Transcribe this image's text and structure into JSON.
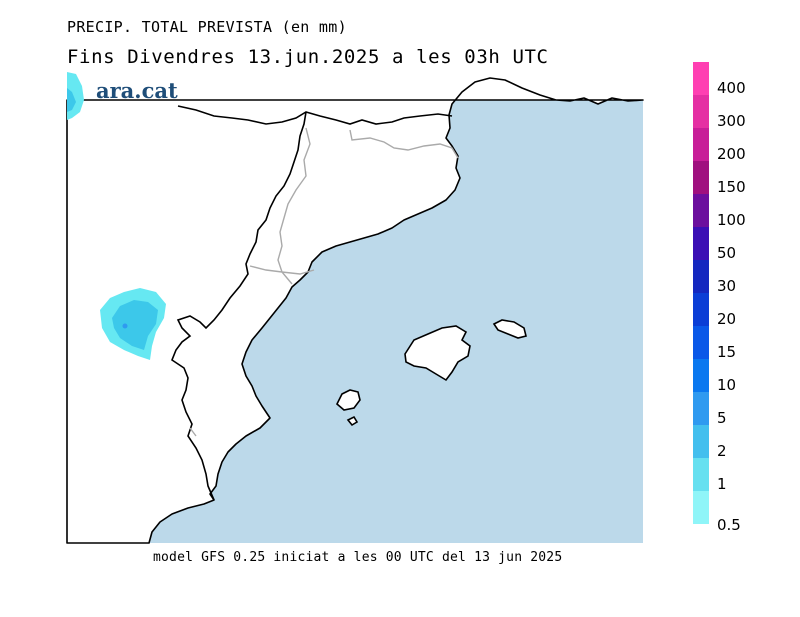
{
  "header": {
    "title_line1": "PRECIP. TOTAL PREVISTA (en mm)",
    "title_line2": "Fins Divendres 13.jun.2025 a les 03h UTC"
  },
  "brand": {
    "logo_text": "ara.cat"
  },
  "footer": {
    "model_text": "model GFS 0.25 iniciat a les 00 UTC del 13 jun 2025"
  },
  "map": {
    "sea_color": "#bcd9ea",
    "land_color": "#ffffff",
    "coast_color": "#000000",
    "border_color": "#aaaaaa",
    "precip_areas": [
      {
        "level": "1-2 mm",
        "color": "#66e8f2"
      },
      {
        "level": "2-5 mm",
        "color": "#3cc8ea"
      }
    ]
  },
  "legend": {
    "unit": "mm",
    "levels": [
      {
        "label": "400",
        "color": "#ff3fb2"
      },
      {
        "label": "300",
        "color": "#e52fa3"
      },
      {
        "label": "200",
        "color": "#c81e98"
      },
      {
        "label": "150",
        "color": "#a0107f"
      },
      {
        "label": "100",
        "color": "#6c0f9e"
      },
      {
        "label": "50",
        "color": "#3b0fb5"
      },
      {
        "label": "30",
        "color": "#1428c0"
      },
      {
        "label": "20",
        "color": "#0b3ed6"
      },
      {
        "label": "15",
        "color": "#0a58e8"
      },
      {
        "label": "10",
        "color": "#0a78f0"
      },
      {
        "label": "5",
        "color": "#2f9af0"
      },
      {
        "label": "2",
        "color": "#43bfee"
      },
      {
        "label": "1",
        "color": "#66e0f0"
      },
      {
        "label": "0.5",
        "color": "#8ff5f8"
      }
    ]
  }
}
